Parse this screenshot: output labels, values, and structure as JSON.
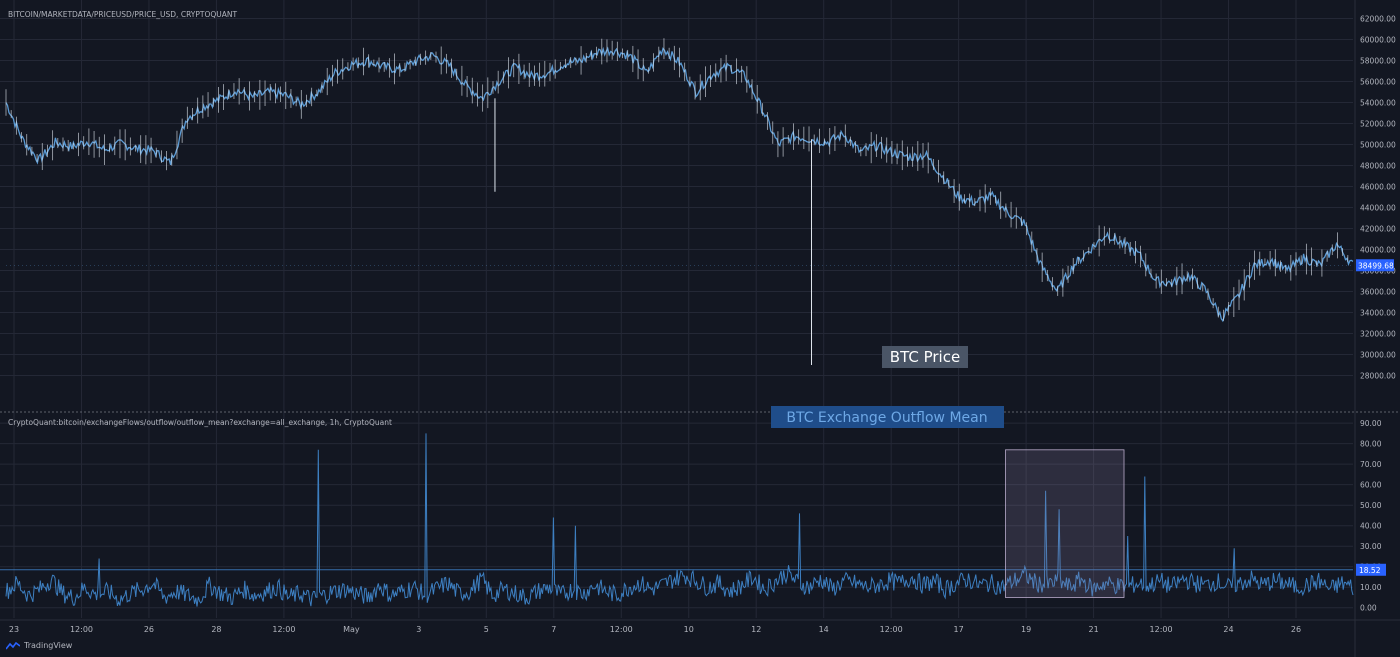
{
  "price_panel": {
    "source_label": "BITCOIN/MARKETDATA/PRICEUSD/PRICE_USD, CRYPTOQUANT",
    "annotation": "BTC Price",
    "last_value_label": "38499.68"
  },
  "flow_panel": {
    "source_label": "CryptoQuant:bitcoin/exchangeFlows/outflow/outflow_mean?exchange=all_exchange, 1h, CryptoQuant",
    "annotation": "BTC Exchange Outflow Mean",
    "last_value_label": "18.52"
  },
  "branding": {
    "logo_text": "TradingView",
    "logo_icon": "tradingview-logo-icon"
  },
  "colors": {
    "background": "#131722",
    "grid": "#242836",
    "price_line": "#5b9bd5",
    "flow_line": "#3d7fc1",
    "annotation_price_bg": "#4a5566",
    "annotation_flow_bg": "#1f4d8a",
    "highlight_box": "#8f7ea6"
  },
  "x_ticks": [
    "23",
    "12:00",
    "26",
    "28",
    "12:00",
    "May",
    "3",
    "5",
    "7",
    "12:00",
    "10",
    "12",
    "14",
    "12:00",
    "17",
    "19",
    "21",
    "12:00",
    "24",
    "26"
  ],
  "chart_data": [
    {
      "type": "line",
      "title": "BTC Price",
      "series": [
        {
          "name": "BTC Price",
          "values": [
            54000,
            50500,
            48500,
            50200,
            49800,
            50300,
            49500,
            50100,
            49600,
            49400,
            48200,
            52500,
            53600,
            54300,
            55200,
            54500,
            55000,
            54700,
            53800,
            55000,
            56800,
            57600,
            58000,
            57400,
            57100,
            58000,
            58500,
            57500,
            55600,
            54400,
            56000,
            57400,
            56500,
            56800,
            57700,
            58000,
            58800,
            59000,
            58400,
            56800,
            59200,
            57800,
            55000,
            56700,
            57400,
            56500,
            53500,
            50000,
            50800,
            50500,
            50200,
            51000,
            49300,
            49900,
            49200,
            48800,
            49000,
            47000,
            45000,
            44500,
            45100,
            43500,
            42500,
            38500,
            36000,
            38500,
            40000,
            41500,
            40500,
            39500,
            37000,
            36800,
            37500,
            36200,
            33500,
            35500,
            38500,
            39000,
            38000,
            39200,
            38500,
            40500,
            38500
          ]
        }
      ],
      "x_start_label": "23",
      "x_end_label": "26",
      "ylim": [
        27000,
        63000
      ],
      "y_ticks": [
        28000,
        30000,
        32000,
        34000,
        36000,
        38000,
        40000,
        42000,
        44000,
        46000,
        48000,
        50000,
        52000,
        54000,
        56000,
        58000,
        60000,
        62000
      ],
      "spikes": [
        {
          "position": 0.363,
          "low": 45500
        },
        {
          "position": 0.598,
          "low": 29000
        }
      ],
      "last_value": 38499.68,
      "grid": true,
      "legend": "none"
    },
    {
      "type": "line",
      "title": "BTC Exchange Outflow Mean",
      "series": [
        {
          "name": "BTC Exchange Outflow Mean",
          "values": [
            8,
            12,
            6,
            9,
            14,
            7,
            5,
            10,
            6,
            8,
            4,
            7,
            9,
            12,
            5,
            8,
            6,
            4,
            11,
            7,
            5,
            9,
            6,
            8,
            10,
            5,
            7,
            4,
            6,
            8,
            9,
            7,
            5,
            11,
            6,
            8,
            10,
            6,
            9,
            12,
            7,
            8,
            14,
            6,
            9,
            7,
            5,
            8,
            10,
            6,
            9,
            7,
            11,
            8,
            6,
            10,
            12,
            9,
            11,
            14,
            16,
            13,
            10,
            12,
            8,
            11,
            15,
            9,
            13,
            17,
            12,
            10,
            14,
            9,
            13,
            12,
            10,
            11,
            13,
            12,
            15,
            11,
            13,
            9,
            12,
            14,
            11,
            12,
            10,
            13,
            16,
            12,
            11,
            13,
            10,
            14,
            9,
            12,
            11,
            10,
            12,
            11,
            13,
            10,
            14,
            12,
            11,
            13,
            10,
            12,
            14,
            11,
            13,
            12,
            10,
            11,
            13,
            9,
            12,
            10
          ]
        }
      ],
      "spikes": [
        {
          "position": 0.069,
          "value": 24
        },
        {
          "position": 0.232,
          "value": 77
        },
        {
          "position": 0.312,
          "value": 85
        },
        {
          "position": 0.406,
          "value": 44
        },
        {
          "position": 0.423,
          "value": 40
        },
        {
          "position": 0.589,
          "value": 46
        },
        {
          "position": 0.772,
          "value": 57
        },
        {
          "position": 0.782,
          "value": 48
        },
        {
          "position": 0.833,
          "value": 35
        },
        {
          "position": 0.845,
          "value": 64
        },
        {
          "position": 0.912,
          "value": 29
        }
      ],
      "ylim": [
        -5,
        93
      ],
      "y_ticks": [
        0,
        10,
        20,
        30,
        40,
        50,
        60,
        70,
        80,
        90
      ],
      "reference_line": 18.52,
      "highlight_range": {
        "x_start": 0.742,
        "x_end": 0.83,
        "y_low": 5,
        "y_high": 77
      },
      "last_value": 18.52,
      "grid": true,
      "legend": "none"
    }
  ]
}
